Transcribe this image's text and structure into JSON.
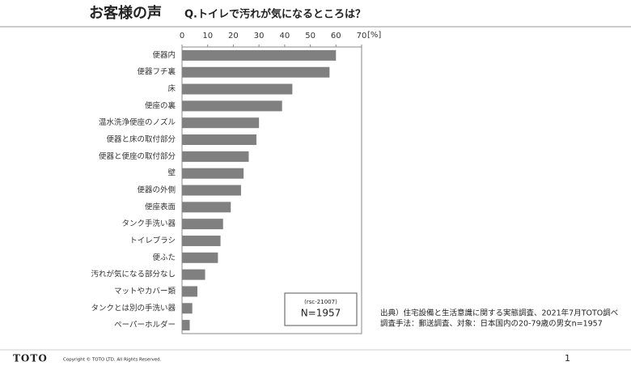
{
  "header": "お客様の声",
  "chart_data": {
    "type": "bar",
    "orientation": "horizontal",
    "title": "Q.トイレで汚れが気になるところは？",
    "x_unit": "[%]",
    "categories": [
      "便器内",
      "便器フチ裏",
      "床",
      "便座の裏",
      "温水洗浄便座のノズル",
      "便器と床の取付部分",
      "便器と便座の取付部分",
      "壁",
      "便器の外側",
      "便座表面",
      "タンク手洗い器",
      "トイレブラシ",
      "便ふた",
      "汚れが気になる部分なし",
      "マットやカバー類",
      "タンクとは別の手洗い器",
      "ペーパーホルダー"
    ],
    "values": [
      60,
      57.5,
      43,
      39,
      30,
      29,
      26,
      24,
      23,
      19,
      16,
      15,
      14,
      9,
      6,
      4,
      3
    ],
    "color": "#808080",
    "xlim": [
      0,
      70
    ],
    "xticks": [
      0,
      10,
      20,
      30,
      40,
      50,
      60,
      70
    ]
  },
  "sample_box": {
    "code": "(rsc-21007)",
    "n": "N=1957"
  },
  "source": [
    "出典）住宅設備と生活意識に関する実態調査、2021年7月TOTO調べ",
    "調査手法：郵送調査、対象：日本国内の20-79歳の男女n=1957"
  ],
  "footer": {
    "logo": "TOTO",
    "copyright": "Copyright © TOTO LTD. All Rights Reserved.",
    "page": "1"
  }
}
